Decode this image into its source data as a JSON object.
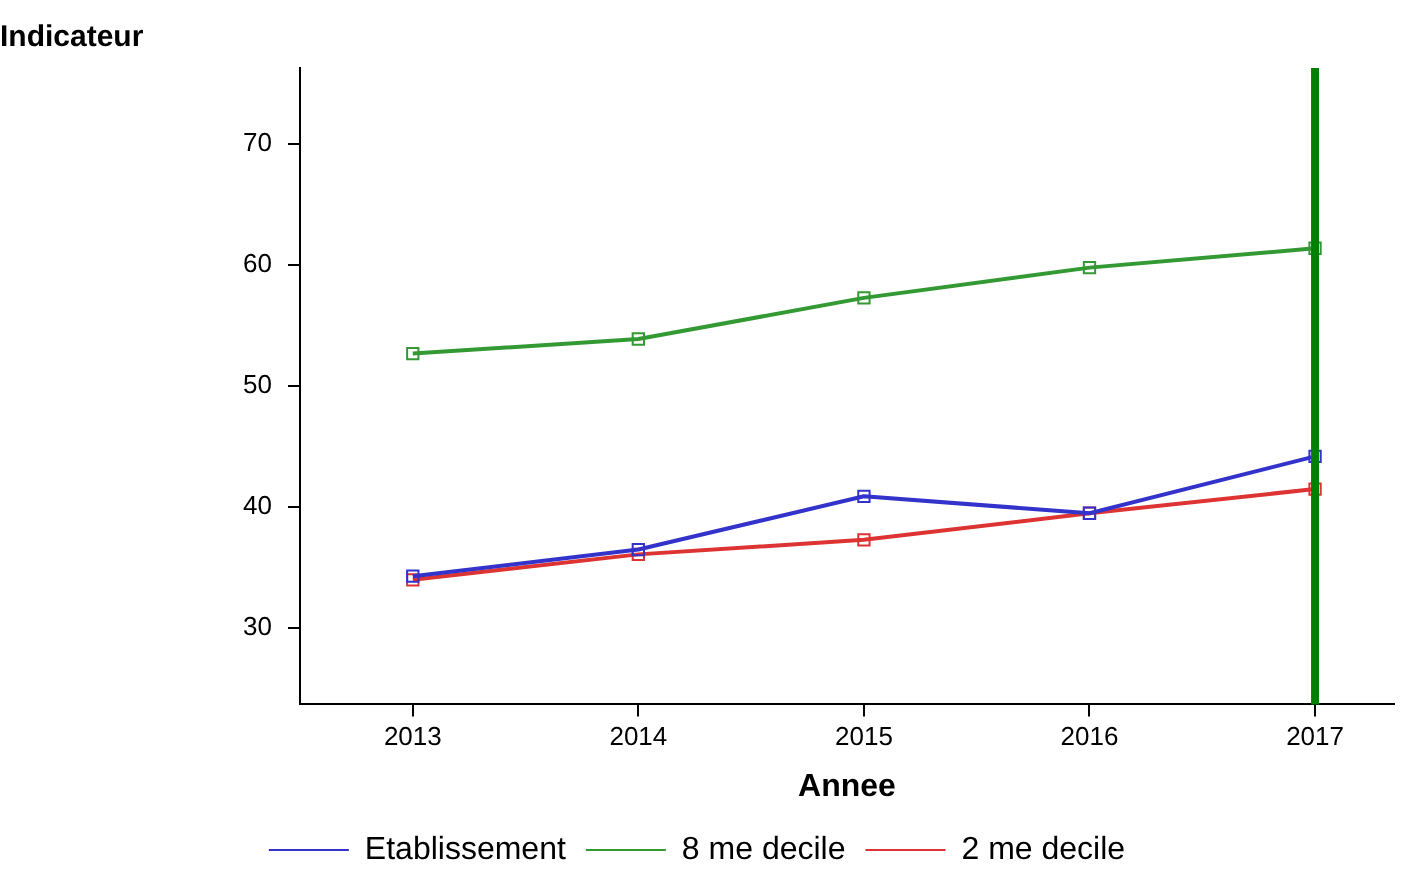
{
  "chart_data": {
    "type": "line",
    "ylabel": "Indicateur",
    "xlabel": "Annee",
    "x": [
      2013,
      2014,
      2015,
      2016,
      2017
    ],
    "series": [
      {
        "name": "Etablissement",
        "color": "#3333cc",
        "values": [
          34.3,
          36.5,
          40.9,
          39.5,
          44.2
        ]
      },
      {
        "name": "8 me decile",
        "color": "#339933",
        "values": [
          52.7,
          53.9,
          57.3,
          59.8,
          61.4
        ]
      },
      {
        "name": "2 me decile",
        "color": "#dd3333",
        "values": [
          34.0,
          36.1,
          37.3,
          39.5,
          41.5
        ]
      }
    ],
    "xlim": [
      2012.5,
      2017.35
    ],
    "xticks": [
      2013,
      2014,
      2015,
      2016,
      2017
    ],
    "ylim": [
      23.7,
      76.3
    ],
    "yticks": [
      30,
      40,
      50,
      60,
      70
    ],
    "ref_lines": [
      {
        "axis": "x",
        "value": 2017,
        "color": "#008000"
      }
    ],
    "marker": "square",
    "line_style": "solid",
    "grid": false,
    "legend": "bottom"
  }
}
